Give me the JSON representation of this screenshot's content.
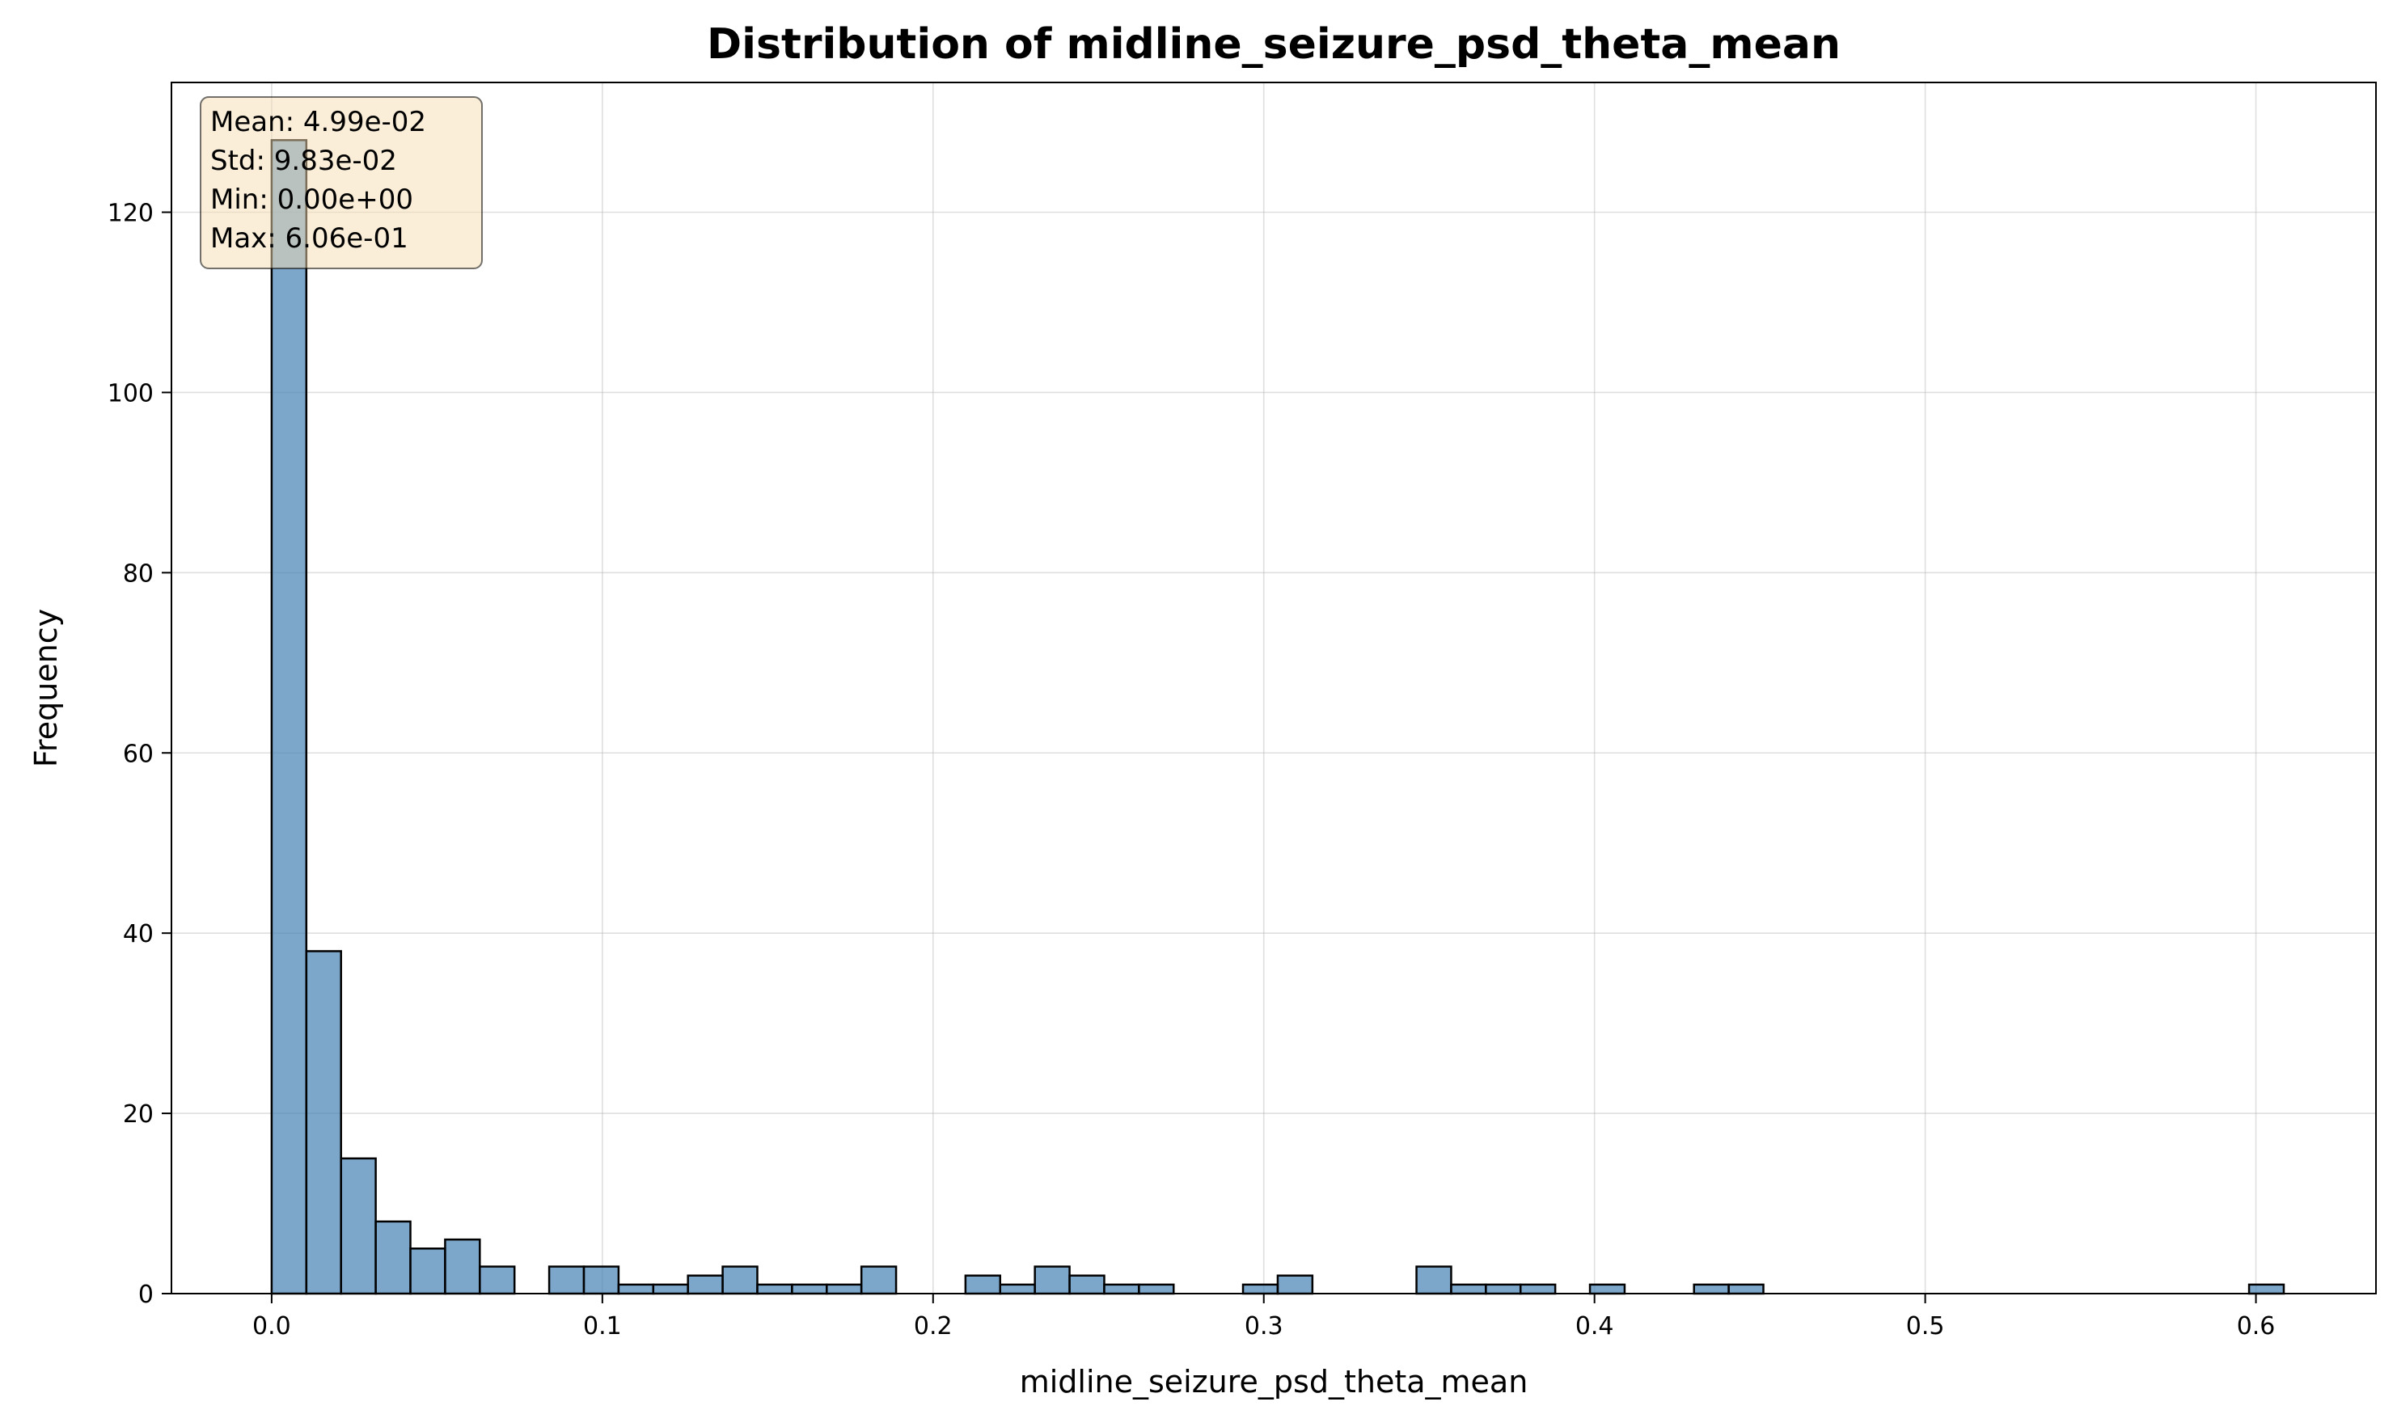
{
  "chart_data": {
    "type": "bar",
    "title": "Distribution of midline_seizure_psd_theta_mean",
    "xlabel": "midline_seizure_psd_theta_mean",
    "ylabel": "Frequency",
    "xlim": [
      -0.0303,
      0.6363
    ],
    "ylim": [
      0,
      134.4
    ],
    "xticks": [
      0.0,
      0.1,
      0.2,
      0.3,
      0.4,
      0.5,
      0.6
    ],
    "xtick_labels": [
      "0.0",
      "0.1",
      "0.2",
      "0.3",
      "0.4",
      "0.5",
      "0.6"
    ],
    "yticks": [
      0,
      20,
      40,
      60,
      80,
      100,
      120
    ],
    "ytick_labels": [
      "0",
      "20",
      "40",
      "60",
      "80",
      "100",
      "120"
    ],
    "grid": true,
    "bar_color": "#4682b4",
    "bar_edge_color": "#000000",
    "bin_start": 0.0,
    "bin_width": 0.01049,
    "values": [
      128,
      38,
      15,
      8,
      5,
      6,
      3,
      0,
      3,
      3,
      1,
      1,
      2,
      3,
      1,
      1,
      1,
      3,
      0,
      0,
      2,
      1,
      3,
      2,
      1,
      1,
      0,
      0,
      1,
      2,
      0,
      0,
      0,
      3,
      1,
      1,
      1,
      0,
      1,
      0,
      0,
      1,
      1,
      0,
      0,
      0,
      0,
      0,
      0,
      0,
      0,
      0,
      0,
      0,
      0,
      0,
      0,
      1
    ],
    "stats_box": {
      "lines": [
        "Mean: 4.99e-02",
        "Std: 9.83e-02",
        "Min: 0.00e+00",
        "Max: 6.06e-01"
      ],
      "background": "#f5deb3",
      "placement": "top-left"
    }
  }
}
